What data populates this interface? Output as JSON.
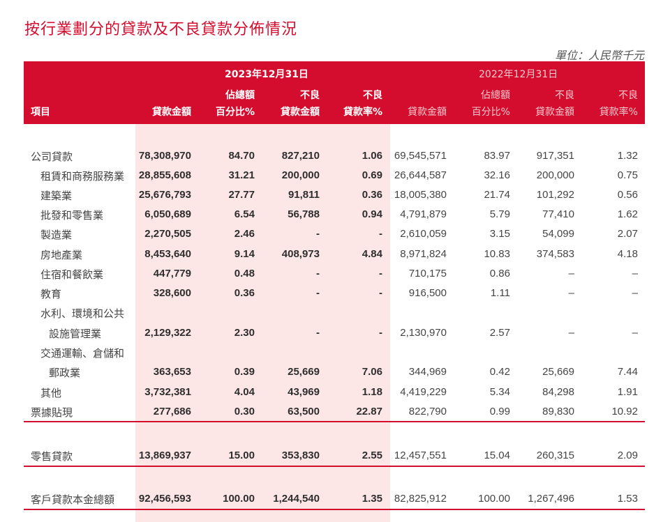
{
  "title": "按行業劃分的貸款及不良貸款分佈情況",
  "unit": "單位：人民幣千元",
  "header": {
    "item_label": "項目",
    "period_2023": "2023年12月31日",
    "period_2022": "2022年12月31日",
    "columns_2023": [
      {
        "line1": "",
        "line2": "貸款金額"
      },
      {
        "line1": "佔總額",
        "line2": "百分比%"
      },
      {
        "line1": "不良",
        "line2": "貸款金額"
      },
      {
        "line1": "不良",
        "line2": "貸款率%"
      }
    ],
    "columns_2022": [
      {
        "line1": "",
        "line2": "貸款金額"
      },
      {
        "line1": "佔總額",
        "line2": "百分比%"
      },
      {
        "line1": "不良",
        "line2": "貸款金額"
      },
      {
        "line1": "不良",
        "line2": "貸款率%"
      }
    ]
  },
  "rows": [
    {
      "label": "公司貸款",
      "indent": 0,
      "values": [
        "78,308,970",
        "84.70",
        "827,210",
        "1.06",
        "69,545,571",
        "83.97",
        "917,351",
        "1.32"
      ]
    },
    {
      "label": "租賃和商務服務業",
      "indent": 1,
      "values": [
        "28,855,608",
        "31.21",
        "200,000",
        "0.69",
        "26,644,587",
        "32.16",
        "200,000",
        "0.75"
      ]
    },
    {
      "label": "建築業",
      "indent": 1,
      "values": [
        "25,676,793",
        "27.77",
        "91,811",
        "0.36",
        "18,005,380",
        "21.74",
        "101,292",
        "0.56"
      ]
    },
    {
      "label": "批發和零售業",
      "indent": 1,
      "values": [
        "6,050,689",
        "6.54",
        "56,788",
        "0.94",
        "4,791,879",
        "5.79",
        "77,410",
        "1.62"
      ]
    },
    {
      "label": "製造業",
      "indent": 1,
      "values": [
        "2,270,505",
        "2.46",
        "-",
        "-",
        "2,610,059",
        "3.15",
        "54,099",
        "2.07"
      ]
    },
    {
      "label": "房地產業",
      "indent": 1,
      "values": [
        "8,453,640",
        "9.14",
        "408,973",
        "4.84",
        "8,971,824",
        "10.83",
        "374,583",
        "4.18"
      ]
    },
    {
      "label": "住宿和餐飲業",
      "indent": 1,
      "values": [
        "447,779",
        "0.48",
        "-",
        "-",
        "710,175",
        "0.86",
        "–",
        "–"
      ]
    },
    {
      "label": "教育",
      "indent": 1,
      "values": [
        "328,600",
        "0.36",
        "-",
        "-",
        "916,500",
        "1.11",
        "–",
        "–"
      ]
    },
    {
      "label": "水利、環境和公共",
      "indent": 1,
      "values": [
        "",
        "",
        "",
        "",
        "",
        "",
        "",
        ""
      ]
    },
    {
      "label": "設施管理業",
      "indent": 2,
      "values": [
        "2,129,322",
        "2.30",
        "-",
        "-",
        "2,130,970",
        "2.57",
        "–",
        "–"
      ]
    },
    {
      "label": "交通運輸、倉儲和",
      "indent": 1,
      "values": [
        "",
        "",
        "",
        "",
        "",
        "",
        "",
        ""
      ]
    },
    {
      "label": "郵政業",
      "indent": 2,
      "values": [
        "363,653",
        "0.39",
        "25,669",
        "7.06",
        "344,969",
        "0.42",
        "25,669",
        "7.44"
      ]
    },
    {
      "label": "其他",
      "indent": 1,
      "values": [
        "3,732,381",
        "4.04",
        "43,969",
        "1.18",
        "4,419,229",
        "5.34",
        "84,298",
        "1.91"
      ]
    },
    {
      "label": "票據貼現",
      "indent": 0,
      "values": [
        "277,686",
        "0.30",
        "63,500",
        "22.87",
        "822,790",
        "0.99",
        "89,830",
        "10.92"
      ]
    }
  ],
  "retail": {
    "label": "零售貸款",
    "values": [
      "13,869,937",
      "15.00",
      "353,830",
      "2.55",
      "12,457,551",
      "15.04",
      "260,315",
      "2.09"
    ]
  },
  "total": {
    "label": "客戶貸款本金總額",
    "values": [
      "92,456,593",
      "100.00",
      "1,244,540",
      "1.35",
      "82,825,912",
      "100.00",
      "1,267,496",
      "1.53"
    ]
  },
  "colors": {
    "accent": "#d40d2e",
    "highlight_column": "#fde6e6"
  }
}
